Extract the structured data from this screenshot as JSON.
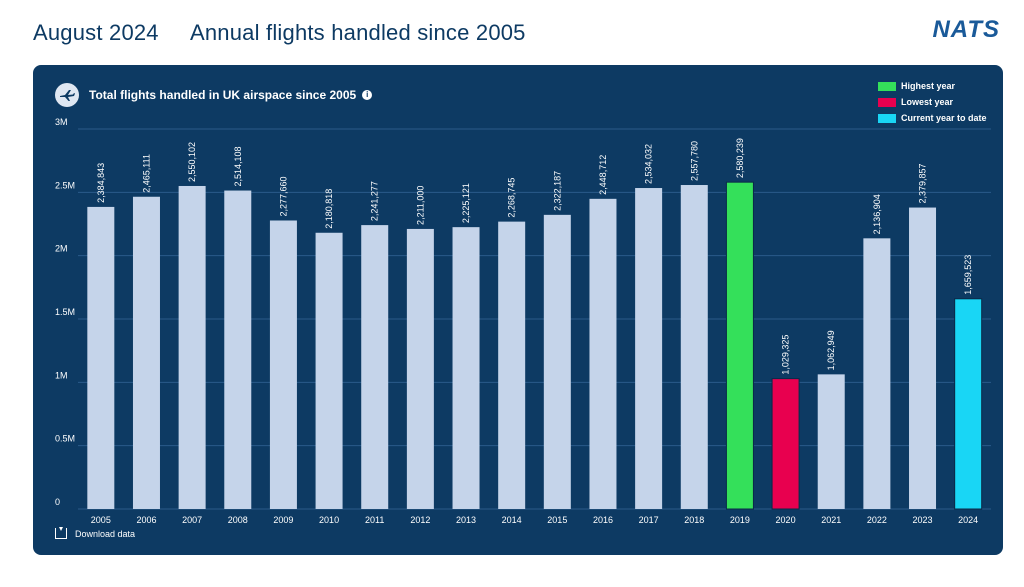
{
  "header": {
    "date": "August 2024",
    "title": "Annual flights handled since 2005",
    "logo": "NATS"
  },
  "panel": {
    "title": "Total flights handled in UK airspace since 2005",
    "download_label": "Download data"
  },
  "legend": [
    {
      "label": "Highest year",
      "color": "#34e05a"
    },
    {
      "label": "Lowest year",
      "color": "#e8004f"
    },
    {
      "label": "Current year to date",
      "color": "#19d6f5"
    }
  ],
  "colors": {
    "default_bar": "#c5d4ea",
    "grid": "#2a5b8a",
    "axis_text": "#ffffff"
  },
  "chart_data": {
    "type": "bar",
    "title": "Total flights handled in UK airspace since 2005",
    "xlabel": "",
    "ylabel": "",
    "ylim": [
      0,
      3000000
    ],
    "yticks": [
      {
        "value": 0,
        "label": "0"
      },
      {
        "value": 500000,
        "label": "0.5M"
      },
      {
        "value": 1000000,
        "label": "1M"
      },
      {
        "value": 1500000,
        "label": "1.5M"
      },
      {
        "value": 2000000,
        "label": "2M"
      },
      {
        "value": 2500000,
        "label": "2.5M"
      },
      {
        "value": 3000000,
        "label": "3M"
      }
    ],
    "grid": true,
    "legend_position": "top-right",
    "categories": [
      "2005",
      "2006",
      "2007",
      "2008",
      "2009",
      "2010",
      "2011",
      "2012",
      "2013",
      "2014",
      "2015",
      "2016",
      "2017",
      "2018",
      "2019",
      "2020",
      "2021",
      "2022",
      "2023",
      "2024"
    ],
    "values": [
      2384843,
      2465111,
      2550102,
      2514108,
      2277660,
      2180818,
      2241277,
      2211000,
      2225121,
      2268745,
      2322187,
      2448712,
      2534032,
      2557780,
      2580239,
      1029325,
      1062949,
      2136904,
      2379857,
      1659523
    ],
    "value_labels": [
      "2,384,843",
      "2,465,111",
      "2,550,102",
      "2,514,108",
      "2,277,660",
      "2,180,818",
      "2,241,277",
      "2,211,000",
      "2,225,121",
      "2,268,745",
      "2,322,187",
      "2,448,712",
      "2,534,032",
      "2,557,780",
      "2,580,239",
      "1,029,325",
      "1,062,949",
      "2,136,904",
      "2,379,857",
      "1,659,523"
    ],
    "highlights": {
      "2019": "Highest year",
      "2020": "Lowest year",
      "2024": "Current year to date"
    }
  }
}
